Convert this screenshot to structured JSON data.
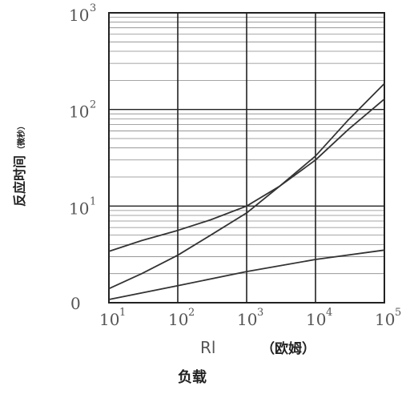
{
  "chart_data": {
    "type": "line",
    "title": "",
    "ylabel": "反应时间",
    "ylabel_unit": "（微秒）",
    "xlabel_symbol": "Rl",
    "xlabel_unit": "（欧姆）",
    "xlabel": "负载",
    "x_scale": "log",
    "y_scale": "log",
    "xlim": [
      10,
      100000
    ],
    "ylim": [
      1,
      1000
    ],
    "grid": true,
    "x_ticks": [
      {
        "base": "10",
        "exp": "1"
      },
      {
        "base": "10",
        "exp": "2"
      },
      {
        "base": "10",
        "exp": "3"
      },
      {
        "base": "10",
        "exp": "4"
      },
      {
        "base": "10",
        "exp": "5"
      }
    ],
    "y_ticks": [
      {
        "base": "0",
        "exp": ""
      },
      {
        "base": "10",
        "exp": "1"
      },
      {
        "base": "10",
        "exp": "2"
      },
      {
        "base": "10",
        "exp": "3"
      }
    ],
    "series": [
      {
        "values": [
          [
            10,
            3.4
          ],
          [
            30,
            4.4
          ],
          [
            100,
            5.6
          ],
          [
            300,
            7.2
          ],
          [
            1000,
            10
          ],
          [
            3000,
            16
          ],
          [
            10000,
            30
          ],
          [
            30000,
            62
          ],
          [
            100000,
            128
          ]
        ]
      },
      {
        "values": [
          [
            10,
            1.4
          ],
          [
            30,
            2.0
          ],
          [
            100,
            3.1
          ],
          [
            300,
            5.0
          ],
          [
            1000,
            8.5
          ],
          [
            3000,
            16
          ],
          [
            10000,
            33
          ],
          [
            30000,
            78
          ],
          [
            100000,
            185
          ]
        ]
      },
      {
        "values": [
          [
            10,
            1.08
          ],
          [
            100,
            1.5
          ],
          [
            1000,
            2.1
          ],
          [
            10000,
            2.8
          ],
          [
            100000,
            3.5
          ]
        ]
      }
    ]
  }
}
